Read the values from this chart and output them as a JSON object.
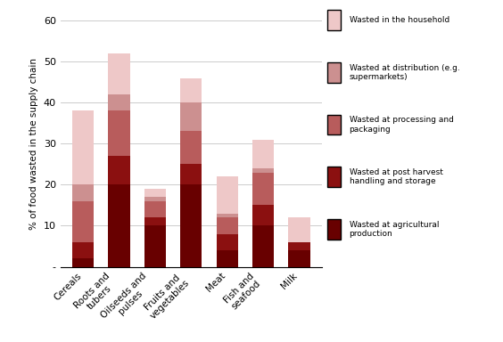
{
  "categories": [
    "Cereals",
    "Roots and\ntubers",
    "Oilseeds and\npulses",
    "Fruits and\nvegetables",
    "Meat",
    "Fish and\nseafood",
    "Milk"
  ],
  "segments": [
    {
      "label": "Wasted at agricultural\nproduction",
      "color": "#680000",
      "values": [
        2,
        20,
        10,
        20,
        4,
        10,
        4
      ]
    },
    {
      "label": "Wasted at post harvest\nhandling and storage",
      "color": "#8B1010",
      "values": [
        4,
        7,
        2,
        5,
        4,
        5,
        2
      ]
    },
    {
      "label": "Wasted at processing and\npackaging",
      "color": "#B85C5C",
      "values": [
        10,
        11,
        4,
        8,
        4,
        8,
        0
      ]
    },
    {
      "label": "Wasted at distribution (e.g.\nsupermarkets)",
      "color": "#CC9090",
      "values": [
        4,
        4,
        1,
        7,
        1,
        1,
        0
      ]
    },
    {
      "label": "Wasted in the household",
      "color": "#EEC8C8",
      "values": [
        18,
        10,
        2,
        6,
        9,
        7,
        6
      ]
    }
  ],
  "ylabel": "% of food wasted in the supply chain",
  "ylim": [
    0,
    60
  ],
  "yticks": [
    0,
    10,
    20,
    30,
    40,
    50,
    60
  ],
  "ytick_labels": [
    "-",
    "10",
    "20",
    "30",
    "40",
    "50",
    "60"
  ],
  "background_color": "#ffffff",
  "grid_color": "#cccccc",
  "bar_width": 0.6,
  "figsize": [
    5.64,
    3.84
  ],
  "dpi": 100
}
